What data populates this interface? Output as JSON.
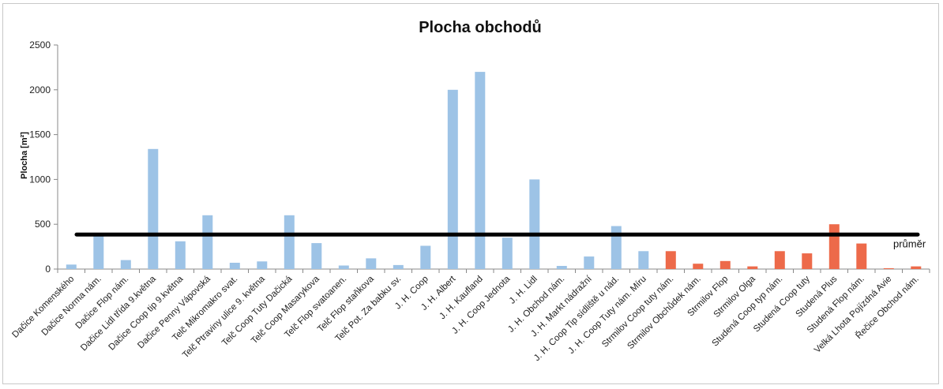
{
  "chart_data": {
    "type": "bar",
    "title": "Plocha obchodů",
    "xlabel": "",
    "ylabel": "Plocha  [m²]",
    "ylim": [
      0,
      2500
    ],
    "yticks": [
      0,
      500,
      1000,
      1500,
      2000,
      2500
    ],
    "grid": false,
    "categories": [
      "Dačice Komenského",
      "Dačice Norma nám.",
      "Dačice Flop nám.",
      "Dačice Lidl třída 9.května",
      "Dačice Coop tip 9.května",
      "Dačice Penny Vápovská",
      "Telč Mikromakro svat.",
      "Telč Ptraviny ulice 9. května",
      "Telč Coop Tuty Dačická",
      "Telč Coop Masarykova",
      "Telč Flop svatoanen.",
      "Telč Flop staňkova",
      "Telč Pot. Za babku sv.",
      "J. H. Coop",
      "J. H. Albert",
      "J. H. Kaufland",
      "J. H. Coop Jednota",
      "J. H. Lidl",
      "J. H. Obchod nám.",
      "J. H. Markt nádražní",
      "J. H. Coop Tip sídliště u nád.",
      "J. H. Coop Tuty nám. Míru",
      "Strmilov Coop tuty nám.",
      "Strmilov Obchůdek nám.",
      "Strmilov Flop",
      "Strmilov Olga",
      "Studená Coop typ nám.",
      "Studená Coop tuty",
      "Studená Plus",
      "Studená Flop nám.",
      "Velká Lhota Pojízdná Avie",
      "Řečice Obchod nám."
    ],
    "values": [
      50,
      380,
      100,
      1340,
      310,
      600,
      70,
      85,
      600,
      290,
      40,
      120,
      45,
      260,
      2000,
      2200,
      350,
      1000,
      35,
      140,
      480,
      200,
      200,
      60,
      90,
      30,
      200,
      175,
      500,
      285,
      10,
      30
    ],
    "bar_colors": [
      "#9dc3e6",
      "#9dc3e6",
      "#9dc3e6",
      "#9dc3e6",
      "#9dc3e6",
      "#9dc3e6",
      "#9dc3e6",
      "#9dc3e6",
      "#9dc3e6",
      "#9dc3e6",
      "#9dc3e6",
      "#9dc3e6",
      "#9dc3e6",
      "#9dc3e6",
      "#9dc3e6",
      "#9dc3e6",
      "#9dc3e6",
      "#9dc3e6",
      "#9dc3e6",
      "#9dc3e6",
      "#9dc3e6",
      "#9dc3e6",
      "#ed6a4a",
      "#ed6a4a",
      "#ed6a4a",
      "#ed6a4a",
      "#ed6a4a",
      "#ed6a4a",
      "#ed6a4a",
      "#ed6a4a",
      "#ed6a4a",
      "#ed6a4a"
    ],
    "reference_line": {
      "label": "průměr",
      "value": 385,
      "color": "#000000"
    }
  }
}
